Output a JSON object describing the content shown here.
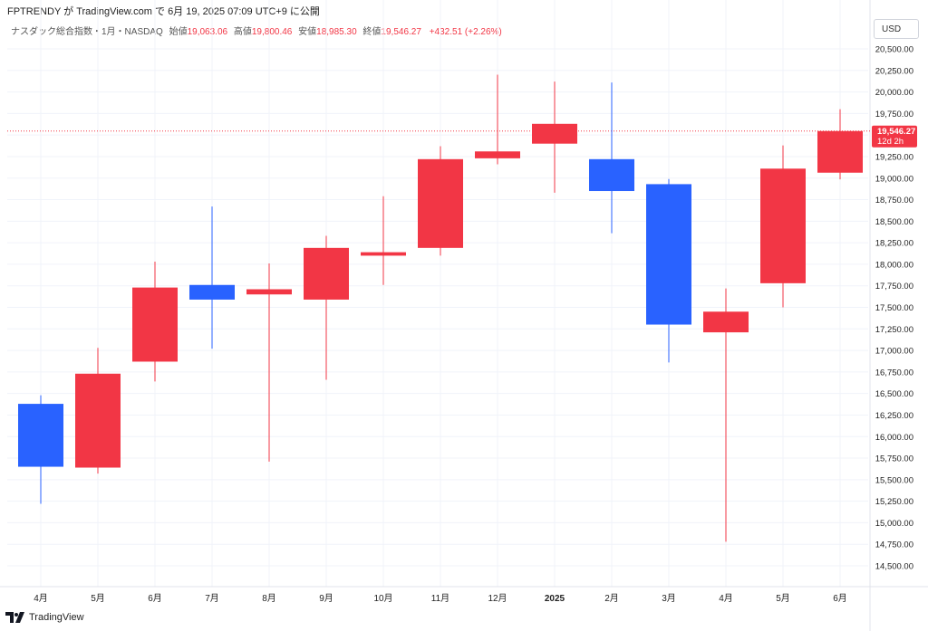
{
  "header": {
    "text": "FPTRENDY が TradingView.com で 6月 19, 2025 07:09 UTC+9 に公開"
  },
  "symbol": {
    "name": "ナスダック総合指数・1月・NASDAQ",
    "open_label": "始値",
    "open_value": "19,063.06",
    "high_label": "高値",
    "high_value": "19,800.46",
    "low_label": "安値",
    "low_value": "18,985.30",
    "close_label": "終値",
    "close_value": "19,546.27",
    "change": "+432.51 (+2.26%)"
  },
  "currency": "USD",
  "price_tag": {
    "value": "19,546.27",
    "countdown": "12d 2h"
  },
  "footer": {
    "brand": "TradingView"
  },
  "colors": {
    "up": "#f23645",
    "down": "#2962ff",
    "grid": "#f0f3fa"
  },
  "chart_data": {
    "type": "candlestick",
    "ylim": [
      14250,
      20500
    ],
    "y_ticks": [
      "14,500.00",
      "14,750.00",
      "15,000.00",
      "15,250.00",
      "15,500.00",
      "15,750.00",
      "16,000.00",
      "16,250.00",
      "16,500.00",
      "16,750.00",
      "17,000.00",
      "17,250.00",
      "17,500.00",
      "17,750.00",
      "18,000.00",
      "18,250.00",
      "18,500.00",
      "18,750.00",
      "19,000.00",
      "19,250.00",
      "19,500.00",
      "19,750.00",
      "20,000.00",
      "20,250.00",
      "20,500.00"
    ],
    "candles": [
      {
        "label": "4月",
        "open": 16380,
        "high": 16480,
        "low": 15220,
        "close": 15650
      },
      {
        "label": "5月",
        "open": 15640,
        "high": 17030,
        "low": 15570,
        "close": 16730
      },
      {
        "label": "6月",
        "open": 16870,
        "high": 18030,
        "low": 16640,
        "close": 17730
      },
      {
        "label": "7月",
        "open": 17760,
        "high": 18670,
        "low": 17020,
        "close": 17590
      },
      {
        "label": "8月",
        "open": 17650,
        "high": 18010,
        "low": 15710,
        "close": 17710
      },
      {
        "label": "9月",
        "open": 17590,
        "high": 18330,
        "low": 16660,
        "close": 18190
      },
      {
        "label": "10月",
        "open": 18100,
        "high": 18790,
        "low": 17760,
        "close": 18140
      },
      {
        "label": "11月",
        "open": 18190,
        "high": 19370,
        "low": 18100,
        "close": 19220
      },
      {
        "label": "12月",
        "open": 19230,
        "high": 20200,
        "low": 19160,
        "close": 19310
      },
      {
        "label": "2025",
        "open": 19400,
        "high": 20120,
        "low": 18830,
        "close": 19630
      },
      {
        "label": "2月",
        "open": 19220,
        "high": 20110,
        "low": 18360,
        "close": 18850
      },
      {
        "label": "3月",
        "open": 18930,
        "high": 18990,
        "low": 16860,
        "close": 17300
      },
      {
        "label": "4月",
        "open": 17210,
        "high": 17720,
        "low": 14780,
        "close": 17450
      },
      {
        "label": "5月",
        "open": 17780,
        "high": 19380,
        "low": 17500,
        "close": 19110
      },
      {
        "label": "6月",
        "open": 19063.06,
        "high": 19800.46,
        "low": 18985.3,
        "close": 19546.27
      }
    ],
    "current_price": 19546.27
  }
}
